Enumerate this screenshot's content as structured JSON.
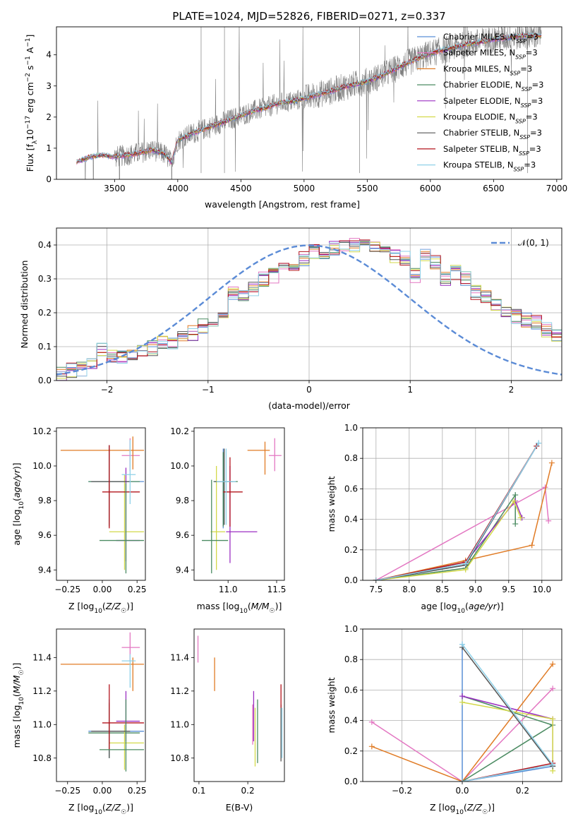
{
  "figure_title": "PLATE=1024, MJD=52826, FIBERID=0271, z=0.337",
  "colors": {
    "series": [
      "#5a8fd6",
      "#e377c2",
      "#e07b25",
      "#4b8b62",
      "#9b2fc2",
      "#d3d94a",
      "#555555",
      "#b3141d",
      "#8fd1e8"
    ],
    "data_gray": "#808080",
    "gauss": "#5b8bd6",
    "grid": "#b0b0b0"
  },
  "chart_data": [
    {
      "id": "spectrum",
      "type": "line",
      "xlabel": "wavelength [Angstrom, rest frame]",
      "ylabel": "Flux [f_λ 10^-17 erg cm^-2 s^-1 A^-1]",
      "xlim": [
        3040,
        7040
      ],
      "ylim": [
        0,
        4.9
      ],
      "xticks": [
        3500,
        4000,
        4500,
        5000,
        5500,
        6000,
        6500,
        7000
      ],
      "yticks": [
        0,
        1,
        2,
        3,
        4
      ],
      "grid": false,
      "legend_position": "top-right",
      "legend": [
        {
          "label": "Chabrier MILES, N_SSP=3",
          "color": "#5a8fd6"
        },
        {
          "label": "Salpeter MILES, N_SSP=3",
          "color": "#e377c2"
        },
        {
          "label": "Kroupa MILES, N_SSP=3",
          "color": "#e07b25"
        },
        {
          "label": "Chabrier ELODIE, N_SSP=3",
          "color": "#4b8b62"
        },
        {
          "label": "Salpeter ELODIE, N_SSP=3",
          "color": "#9b2fc2"
        },
        {
          "label": "Kroupa ELODIE, N_SSP=3",
          "color": "#d3d94a"
        },
        {
          "label": "Chabrier STELIB, N_SSP=3",
          "color": "#555555"
        },
        {
          "label": "Salpeter STELIB, N_SSP=3",
          "color": "#b3141d"
        },
        {
          "label": "Kroupa STELIB, N_SSP=3",
          "color": "#8fd1e8"
        }
      ],
      "continuum": {
        "x": [
          3200,
          3300,
          3400,
          3500,
          3600,
          3700,
          3800,
          3900,
          3950,
          4000,
          4100,
          4200,
          4300,
          4400,
          4500,
          4600,
          4700,
          4800,
          4900,
          5000,
          5100,
          5200,
          5300,
          5400,
          5500,
          5600,
          5700,
          5800,
          5900,
          6000,
          6100,
          6200,
          6300,
          6400,
          6500,
          6600,
          6700,
          6800,
          6900
        ],
        "y": [
          0.55,
          0.72,
          0.78,
          0.72,
          0.78,
          0.85,
          0.95,
          0.8,
          0.55,
          1.25,
          1.45,
          1.6,
          1.75,
          1.9,
          2.05,
          2.2,
          2.3,
          2.45,
          2.5,
          2.6,
          2.72,
          2.82,
          2.95,
          3.05,
          3.15,
          3.3,
          3.5,
          3.7,
          3.88,
          4.05,
          4.15,
          4.25,
          4.35,
          4.42,
          4.5,
          4.55,
          4.6,
          4.62,
          4.6
        ]
      }
    },
    {
      "id": "residuals",
      "type": "histogram",
      "xlabel": "(data-model)/error",
      "ylabel": "Normed distribution",
      "xlim": [
        -2.5,
        2.5
      ],
      "ylim": [
        0,
        0.45
      ],
      "xticks": [
        -2,
        -1,
        0,
        1,
        2
      ],
      "yticks": [
        0.0,
        0.1,
        0.2,
        0.3,
        0.4
      ],
      "grid": true,
      "legend": [
        {
          "label": "𝒩(0, 1)",
          "color": "#5b8bd6"
        }
      ],
      "bin_width": 0.1,
      "bins_start": -2.5,
      "base_density": [
        0.021,
        0.03,
        0.035,
        0.05,
        0.09,
        0.07,
        0.07,
        0.08,
        0.09,
        0.095,
        0.11,
        0.115,
        0.13,
        0.14,
        0.16,
        0.17,
        0.2,
        0.26,
        0.25,
        0.27,
        0.3,
        0.31,
        0.33,
        0.34,
        0.36,
        0.38,
        0.37,
        0.39,
        0.39,
        0.4,
        0.41,
        0.4,
        0.385,
        0.37,
        0.36,
        0.31,
        0.37,
        0.35,
        0.3,
        0.32,
        0.3,
        0.26,
        0.25,
        0.22,
        0.2,
        0.19,
        0.18,
        0.17,
        0.15,
        0.13,
        0.12,
        0.11,
        0.1,
        0.09,
        0.085,
        0.075,
        0.07,
        0.065,
        0.06,
        0.055
      ]
    },
    {
      "id": "age_vs_Z",
      "type": "errorbar",
      "xlabel": "Z [log10(Z/Z☉)]",
      "ylabel": "age [log10(age/yr)]",
      "xlim": [
        -0.33,
        0.31
      ],
      "ylim": [
        9.34,
        10.22
      ],
      "xticks": [
        -0.25,
        0.0,
        0.25
      ],
      "yticks": [
        9.4,
        9.6,
        9.8,
        10.0,
        10.2
      ],
      "grid": false,
      "points": [
        {
          "x": 0.05,
          "y": 9.91,
          "xlo": -0.1,
          "xhi": 0.3,
          "ylo": 9.68,
          "yhi": 10.12,
          "c": 0
        },
        {
          "x": 0.2,
          "y": 10.06,
          "xlo": 0.14,
          "xhi": 0.27,
          "ylo": 9.97,
          "yhi": 10.16,
          "c": 1
        },
        {
          "x": 0.22,
          "y": 10.09,
          "xlo": -0.3,
          "xhi": 0.3,
          "ylo": 9.98,
          "yhi": 10.17,
          "c": 2
        },
        {
          "x": 0.05,
          "y": 9.91,
          "xlo": -0.1,
          "xhi": 0.27,
          "ylo": 9.66,
          "yhi": 10.1,
          "c": 3
        },
        {
          "x": 0.17,
          "y": 9.57,
          "xlo": 0.1,
          "xhi": 0.27,
          "ylo": 9.45,
          "yhi": 9.99,
          "c": 4
        },
        {
          "x": 0.16,
          "y": 9.62,
          "xlo": 0.05,
          "xhi": 0.3,
          "ylo": 9.4,
          "yhi": 9.95,
          "c": 5
        },
        {
          "x": 0.05,
          "y": 9.91,
          "xlo": -0.08,
          "xhi": 0.2,
          "ylo": 9.65,
          "yhi": 10.12,
          "c": 6
        },
        {
          "x": 0.05,
          "y": 9.85,
          "xlo": 0.0,
          "xhi": 0.27,
          "ylo": 9.64,
          "yhi": 10.12,
          "c": 7
        },
        {
          "x": 0.17,
          "y": 9.57,
          "xlo": -0.02,
          "xhi": 0.3,
          "ylo": 9.38,
          "yhi": 9.9,
          "c": 3
        },
        {
          "x": 0.2,
          "y": 9.95,
          "xlo": 0.14,
          "xhi": 0.24,
          "ylo": 9.78,
          "yhi": 10.15,
          "c": 8
        }
      ]
    },
    {
      "id": "age_vs_mass",
      "type": "errorbar",
      "xlabel": "mass [log10(M/M☉)]",
      "ylabel": "",
      "xlim": [
        10.65,
        11.58
      ],
      "ylim": [
        9.34,
        10.22
      ],
      "xticks": [
        11.0,
        11.5
      ],
      "yticks": [
        9.4,
        9.6,
        9.8,
        10.0,
        10.2
      ],
      "grid": false,
      "points": [
        {
          "x": 10.95,
          "y": 9.91,
          "xlo": 10.85,
          "xhi": 11.08,
          "ylo": 9.64,
          "yhi": 10.1,
          "c": 0
        },
        {
          "x": 11.48,
          "y": 10.06,
          "xlo": 11.42,
          "xhi": 11.55,
          "ylo": 9.97,
          "yhi": 10.16,
          "c": 1
        },
        {
          "x": 11.38,
          "y": 10.09,
          "xlo": 11.2,
          "xhi": 11.43,
          "ylo": 9.95,
          "yhi": 10.14,
          "c": 2
        },
        {
          "x": 10.95,
          "y": 9.91,
          "xlo": 10.85,
          "xhi": 11.1,
          "ylo": 9.65,
          "yhi": 10.08,
          "c": 3
        },
        {
          "x": 11.02,
          "y": 9.62,
          "xlo": 10.98,
          "xhi": 11.3,
          "ylo": 9.44,
          "yhi": 10.0,
          "c": 4
        },
        {
          "x": 10.88,
          "y": 9.62,
          "xlo": 10.82,
          "xhi": 10.97,
          "ylo": 9.4,
          "yhi": 10.0,
          "c": 5
        },
        {
          "x": 10.96,
          "y": 9.91,
          "xlo": 10.86,
          "xhi": 11.05,
          "ylo": 9.66,
          "yhi": 10.1,
          "c": 6
        },
        {
          "x": 11.02,
          "y": 9.85,
          "xlo": 10.95,
          "xhi": 11.15,
          "ylo": 9.65,
          "yhi": 10.05,
          "c": 7
        },
        {
          "x": 10.83,
          "y": 9.57,
          "xlo": 10.73,
          "xhi": 11.0,
          "ylo": 9.38,
          "yhi": 9.92,
          "c": 3
        },
        {
          "x": 10.98,
          "y": 9.91,
          "xlo": 10.88,
          "xhi": 11.08,
          "ylo": 9.66,
          "yhi": 10.1,
          "c": 8
        }
      ]
    },
    {
      "id": "weight_vs_age",
      "type": "line",
      "xlabel": "age [log10(age/yr)]",
      "ylabel": "mass weight",
      "xlim": [
        7.3,
        10.3
      ],
      "ylim": [
        0,
        1
      ],
      "xticks": [
        7.5,
        8.0,
        8.5,
        9.0,
        9.5,
        10.0
      ],
      "yticks": [
        0.0,
        0.2,
        0.4,
        0.6,
        0.8,
        1.0
      ],
      "grid": true,
      "series": [
        {
          "c": 0,
          "x": [
            7.5,
            8.85,
            9.95
          ],
          "y": [
            0.0,
            0.1,
            0.9
          ]
        },
        {
          "c": 1,
          "x": [
            7.5,
            10.05,
            10.1
          ],
          "y": [
            0.0,
            0.61,
            0.39
          ]
        },
        {
          "c": 2,
          "x": [
            7.5,
            8.85,
            9.85,
            10.15
          ],
          "y": [
            0.0,
            0.13,
            0.23,
            0.77
          ]
        },
        {
          "c": 3,
          "x": [
            7.5,
            8.85,
            9.6,
            9.6
          ],
          "y": [
            0.0,
            0.08,
            0.56,
            0.37
          ]
        },
        {
          "c": 4,
          "x": [
            7.5,
            8.85,
            9.6,
            9.7
          ],
          "y": [
            0.0,
            0.12,
            0.52,
            0.41
          ]
        },
        {
          "c": 5,
          "x": [
            7.5,
            8.85,
            9.58,
            9.68
          ],
          "y": [
            0.0,
            0.07,
            0.52,
            0.41
          ]
        },
        {
          "c": 6,
          "x": [
            7.5,
            8.85,
            9.92
          ],
          "y": [
            0.0,
            0.1,
            0.88
          ]
        },
        {
          "c": 7,
          "x": [
            7.5,
            8.85,
            9.92
          ],
          "y": [
            0.0,
            0.12,
            0.88
          ]
        },
        {
          "c": 8,
          "x": [
            7.5,
            8.85,
            9.95
          ],
          "y": [
            0.0,
            0.11,
            0.9
          ]
        }
      ]
    },
    {
      "id": "mass_vs_Z",
      "type": "errorbar",
      "xlabel": "Z [log10(Z/Z☉)]",
      "ylabel": "mass [log10(M/M☉)]",
      "xlim": [
        -0.33,
        0.31
      ],
      "ylim": [
        10.66,
        11.57
      ],
      "xticks": [
        -0.25,
        0.0,
        0.25
      ],
      "yticks": [
        10.8,
        11.0,
        11.2,
        11.4
      ],
      "grid": false,
      "points": [
        {
          "x": 0.05,
          "y": 10.96,
          "xlo": -0.1,
          "xhi": 0.3,
          "ylo": 10.8,
          "yhi": 11.15,
          "c": 0
        },
        {
          "x": 0.2,
          "y": 11.46,
          "xlo": 0.14,
          "xhi": 0.27,
          "ylo": 11.38,
          "yhi": 11.55,
          "c": 1
        },
        {
          "x": 0.22,
          "y": 11.36,
          "xlo": -0.3,
          "xhi": 0.3,
          "ylo": 11.2,
          "yhi": 11.4,
          "c": 2
        },
        {
          "x": 0.05,
          "y": 10.95,
          "xlo": -0.1,
          "xhi": 0.27,
          "ylo": 10.8,
          "yhi": 11.12,
          "c": 3
        },
        {
          "x": 0.17,
          "y": 11.02,
          "xlo": 0.1,
          "xhi": 0.27,
          "ylo": 10.9,
          "yhi": 11.2,
          "c": 4
        },
        {
          "x": 0.16,
          "y": 10.89,
          "xlo": 0.05,
          "xhi": 0.3,
          "ylo": 10.73,
          "yhi": 11.0,
          "c": 5
        },
        {
          "x": 0.05,
          "y": 10.96,
          "xlo": -0.08,
          "xhi": 0.2,
          "ylo": 10.8,
          "yhi": 11.13,
          "c": 6
        },
        {
          "x": 0.05,
          "y": 11.01,
          "xlo": 0.0,
          "xhi": 0.3,
          "ylo": 10.85,
          "yhi": 11.24,
          "c": 7
        },
        {
          "x": 0.17,
          "y": 10.85,
          "xlo": -0.02,
          "xhi": 0.3,
          "ylo": 10.72,
          "yhi": 11.15,
          "c": 3
        },
        {
          "x": 0.2,
          "y": 11.38,
          "xlo": 0.14,
          "xhi": 0.24,
          "ylo": 11.22,
          "yhi": 11.42,
          "c": 8
        }
      ]
    },
    {
      "id": "mass_vs_ebv",
      "type": "errorbar",
      "xlabel": "E(B-V)",
      "ylabel": "",
      "xlim": [
        0.09,
        0.275
      ],
      "ylim": [
        10.66,
        11.57
      ],
      "xticks": [
        0.1,
        0.2
      ],
      "yticks": [
        10.8,
        11.0,
        11.2,
        11.4
      ],
      "grid": false,
      "points": [
        {
          "x": 0.098,
          "y": 11.46,
          "xlo": 0.098,
          "xhi": 0.098,
          "ylo": 11.37,
          "yhi": 11.53,
          "c": 1
        },
        {
          "x": 0.132,
          "y": 11.3,
          "xlo": 0.132,
          "xhi": 0.132,
          "ylo": 11.2,
          "yhi": 11.4,
          "c": 2
        },
        {
          "x": 0.21,
          "y": 11.0,
          "xlo": 0.21,
          "xhi": 0.21,
          "ylo": 10.88,
          "yhi": 11.12,
          "c": 1
        },
        {
          "x": 0.212,
          "y": 11.05,
          "xlo": 0.212,
          "xhi": 0.212,
          "ylo": 10.9,
          "yhi": 11.2,
          "c": 4
        },
        {
          "x": 0.215,
          "y": 10.93,
          "xlo": 0.215,
          "xhi": 0.215,
          "ylo": 10.75,
          "yhi": 11.1,
          "c": 5
        },
        {
          "x": 0.22,
          "y": 10.96,
          "xlo": 0.22,
          "xhi": 0.22,
          "ylo": 10.77,
          "yhi": 11.15,
          "c": 3
        },
        {
          "x": 0.268,
          "y": 10.98,
          "xlo": 0.268,
          "xhi": 0.268,
          "ylo": 10.78,
          "yhi": 11.12,
          "c": 6
        },
        {
          "x": 0.268,
          "y": 11.18,
          "xlo": 0.268,
          "xhi": 0.268,
          "ylo": 11.1,
          "yhi": 11.24,
          "c": 7
        },
        {
          "x": 0.27,
          "y": 10.95,
          "xlo": 0.27,
          "xhi": 0.27,
          "ylo": 10.8,
          "yhi": 11.1,
          "c": 8
        }
      ]
    },
    {
      "id": "weight_vs_Z",
      "type": "line",
      "xlabel": "Z [log10(Z/Z☉)]",
      "ylabel": "mass weight",
      "xlim": [
        -0.33,
        0.33
      ],
      "ylim": [
        0,
        1
      ],
      "xticks": [
        -0.2,
        0.0,
        0.2
      ],
      "yticks": [
        0.0,
        0.2,
        0.4,
        0.6,
        0.8,
        1.0
      ],
      "grid": true,
      "series": [
        {
          "c": 0,
          "x": [
            0.0,
            0.0,
            0.3
          ],
          "y": [
            0.9,
            0.0,
            0.1
          ]
        },
        {
          "c": 1,
          "x": [
            -0.3,
            0.0,
            0.3
          ],
          "y": [
            0.39,
            0.0,
            0.61
          ]
        },
        {
          "c": 2,
          "x": [
            -0.3,
            0.0,
            0.3
          ],
          "y": [
            0.23,
            0.0,
            0.77
          ]
        },
        {
          "c": 3,
          "x": [
            0.0,
            0.3,
            0.0
          ],
          "y": [
            0.56,
            0.37,
            0.0
          ]
        },
        {
          "c": 4,
          "x": [
            0.0,
            0.3,
            0.3
          ],
          "y": [
            0.56,
            0.41,
            0.12
          ]
        },
        {
          "c": 5,
          "x": [
            0.0,
            0.3,
            0.3
          ],
          "y": [
            0.52,
            0.41,
            0.07
          ]
        },
        {
          "c": 6,
          "x": [
            0.0,
            0.3
          ],
          "y": [
            0.88,
            0.1
          ]
        },
        {
          "c": 7,
          "x": [
            0.0,
            0.3
          ],
          "y": [
            0.0,
            0.12
          ]
        },
        {
          "c": 8,
          "x": [
            0.0,
            0.3,
            0.0
          ],
          "y": [
            0.9,
            0.11,
            0.0
          ]
        }
      ]
    }
  ]
}
